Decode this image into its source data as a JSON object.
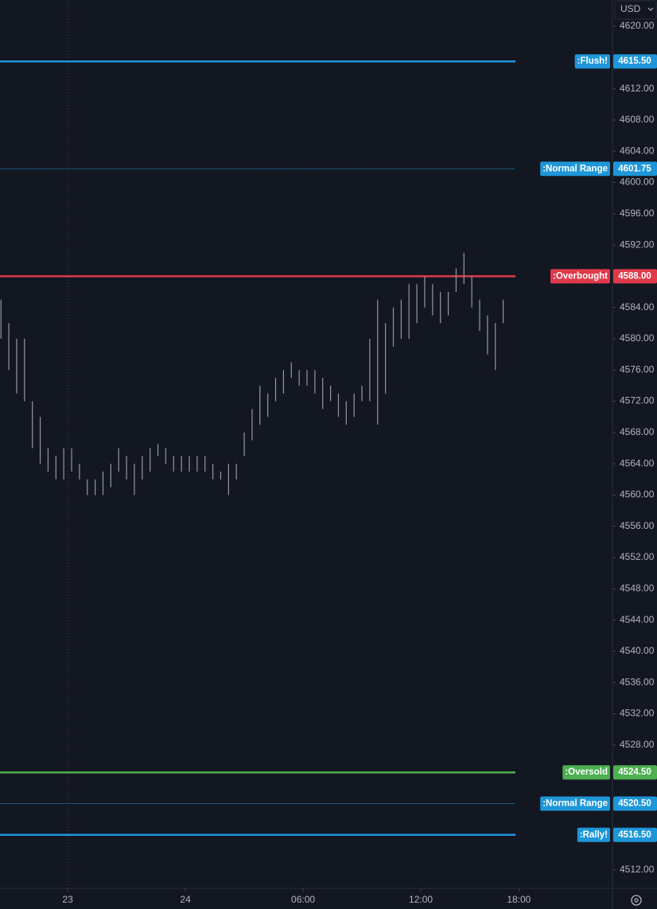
{
  "chart_data": {
    "type": "range_bar",
    "currency": "USD",
    "ylim": [
      4509.66,
      4623.36
    ],
    "yticks": [
      {
        "value": 4620,
        "label": "4620.00"
      },
      {
        "value": 4612,
        "label": "4612.00"
      },
      {
        "value": 4608,
        "label": "4608.00"
      },
      {
        "value": 4604,
        "label": "4604.00"
      },
      {
        "value": 4600,
        "label": "4600.00"
      },
      {
        "value": 4596,
        "label": "4596.00"
      },
      {
        "value": 4592,
        "label": "4592.00"
      },
      {
        "value": 4584,
        "label": "4584.00"
      },
      {
        "value": 4580,
        "label": "4580.00"
      },
      {
        "value": 4576,
        "label": "4576.00"
      },
      {
        "value": 4572,
        "label": "4572.00"
      },
      {
        "value": 4568,
        "label": "4568.00"
      },
      {
        "value": 4564,
        "label": "4564.00"
      },
      {
        "value": 4560,
        "label": "4560.00"
      },
      {
        "value": 4556,
        "label": "4556.00"
      },
      {
        "value": 4552,
        "label": "4552.00"
      },
      {
        "value": 4548,
        "label": "4548.00"
      },
      {
        "value": 4544,
        "label": "4544.00"
      },
      {
        "value": 4540,
        "label": "4540.00"
      },
      {
        "value": 4536,
        "label": "4536.00"
      },
      {
        "value": 4532,
        "label": "4532.00"
      },
      {
        "value": 4528,
        "label": "4528.00"
      },
      {
        "value": 4512,
        "label": "4512.00"
      }
    ],
    "xlim": [
      -3.45,
      27.77
    ],
    "xticks": [
      {
        "value": 0,
        "label": "23"
      },
      {
        "value": 6,
        "label": "24"
      },
      {
        "value": 12,
        "label": "06:00"
      },
      {
        "value": 18,
        "label": "12:00"
      },
      {
        "value": 23,
        "label": "18:00"
      }
    ],
    "series": [
      {
        "color": "#9598a1",
        "x": [
          -3.4,
          -3,
          -2.6,
          -2.2,
          -1.8,
          -1.4,
          -1,
          -0.6,
          -0.2,
          0.2,
          0.6,
          1,
          1.4,
          1.8,
          2.2,
          2.6,
          3,
          3.4,
          3.8,
          4.2,
          4.6,
          5,
          5.4,
          5.8,
          6.2,
          6.6,
          7,
          7.4,
          7.8,
          8.2,
          8.6,
          9,
          9.4,
          9.8,
          10.2,
          10.6,
          11,
          11.4,
          11.8,
          12.2,
          12.6,
          13,
          13.4,
          13.8,
          14.2,
          14.6,
          15,
          15.4,
          15.8,
          16.2,
          16.6,
          17,
          17.4,
          17.8,
          18.2,
          18.6,
          19,
          19.4,
          19.8,
          20.2,
          20.6,
          21,
          21.4,
          21.8,
          22.2
        ],
        "highs": [
          4585,
          4582,
          4580,
          4580,
          4572,
          4570,
          4566,
          4565,
          4566,
          4566,
          4564,
          4562,
          4562,
          4563,
          4564,
          4566,
          4565,
          4564,
          4565,
          4566,
          4566.5,
          4566,
          4565,
          4565,
          4565,
          4565,
          4565,
          4564,
          4563,
          4564,
          4564,
          4568,
          4571,
          4574,
          4573,
          4575,
          4576,
          4577,
          4576,
          4576,
          4576,
          4575,
          4574,
          4573,
          4572,
          4573,
          4574,
          4580,
          4585,
          4582,
          4584,
          4585,
          4587,
          4587,
          4588,
          4587,
          4586,
          4586,
          4589,
          4591,
          4588,
          4585,
          4583,
          4582,
          4585
        ],
        "lows": [
          4580,
          4576,
          4573,
          4572,
          4566,
          4564,
          4563,
          4562,
          4562,
          4563,
          4562,
          4560,
          4560,
          4560,
          4561,
          4563,
          4562,
          4560,
          4562,
          4563,
          4565,
          4564,
          4563,
          4563,
          4563,
          4563,
          4563,
          4562,
          4562,
          4560,
          4562,
          4565,
          4567,
          4569,
          4570,
          4572,
          4573,
          4575,
          4574,
          4574,
          4573,
          4571,
          4572,
          4570,
          4569,
          4570,
          4572,
          4572,
          4569,
          4573,
          4579,
          4580,
          4580,
          4582,
          4584,
          4583,
          4582,
          4583,
          4586,
          4587,
          4584,
          4581,
          4578,
          4576,
          4582
        ]
      }
    ],
    "levels": {
      "names": [
        ":Flush!",
        ":Normal Range",
        ":Overbought",
        ":Oversold",
        ":Normal Range",
        ":Rally!"
      ],
      "values": [
        4615.5,
        4601.75,
        4588,
        4524.5,
        4520.5,
        4516.5
      ],
      "value_labels": [
        "4615.50",
        "4601.75",
        "4588.00",
        "4524.50",
        "4520.50",
        "4516.50"
      ],
      "colors": [
        "#1e96d8",
        "#1e96d8",
        "#e0394a",
        "#4caf50",
        "#1e96d8",
        "#1e96d8"
      ],
      "styles": [
        "solid",
        "dotted",
        "solid",
        "solid",
        "dotted",
        "solid"
      ]
    }
  }
}
